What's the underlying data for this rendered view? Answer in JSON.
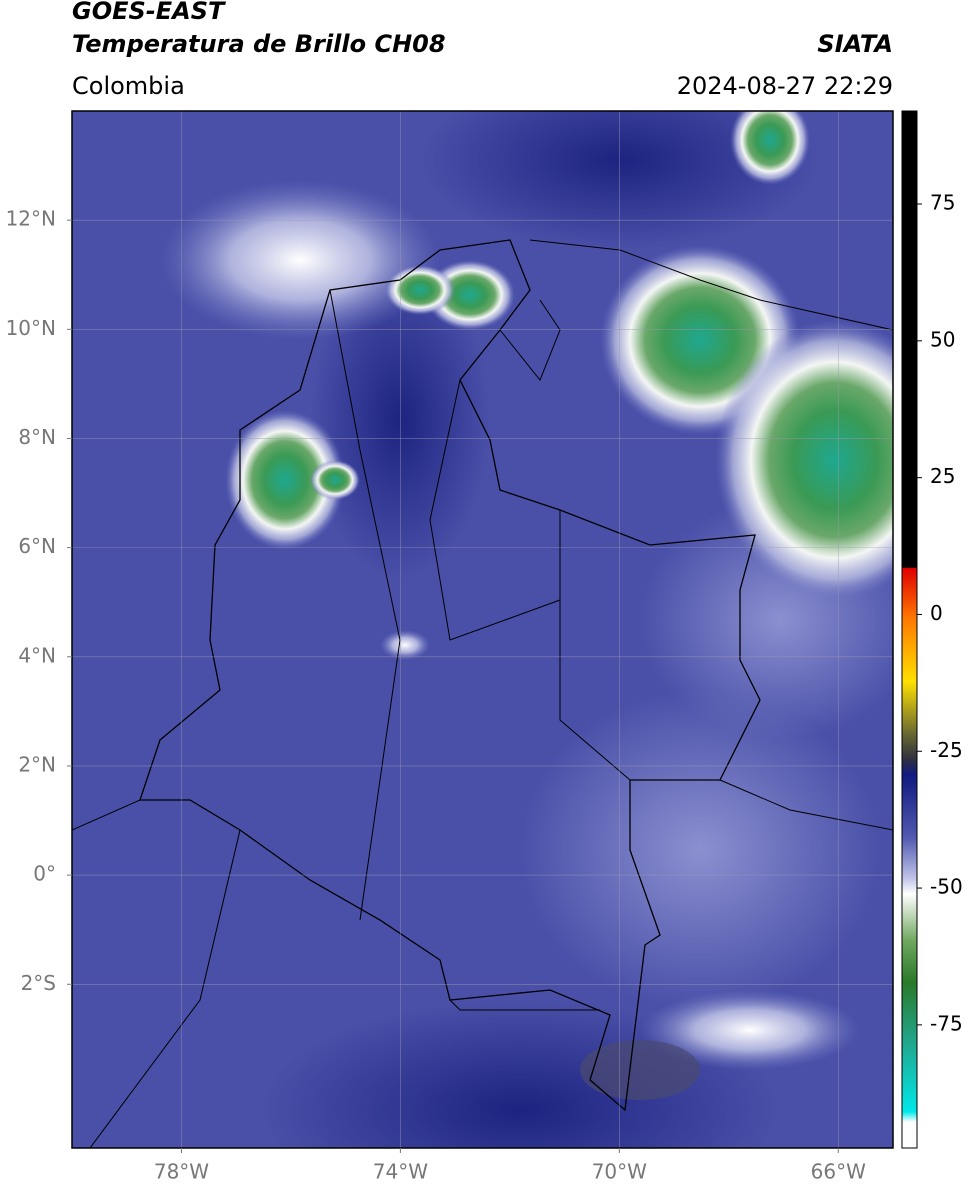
{
  "header": {
    "title_line1": "GOES-EAST",
    "title_line2": "Temperatura de Brillo CH08",
    "region": "Colombia",
    "source": "SIATA",
    "datetime": "2024-08-27 22:29"
  },
  "map": {
    "lonlim": [
      -80,
      -65
    ],
    "latlim": [
      -5,
      14
    ],
    "lon_ticks": [
      {
        "value": -78,
        "label": "78°W"
      },
      {
        "value": -74,
        "label": "74°W"
      },
      {
        "value": -70,
        "label": "70°W"
      },
      {
        "value": -66,
        "label": "66°W"
      }
    ],
    "lat_ticks": [
      {
        "value": 12,
        "label": "12°N"
      },
      {
        "value": 10,
        "label": "10°N"
      },
      {
        "value": 8,
        "label": "8°N"
      },
      {
        "value": 6,
        "label": "6°N"
      },
      {
        "value": 4,
        "label": "4°N"
      },
      {
        "value": 2,
        "label": "2°N"
      },
      {
        "value": 0,
        "label": "0°"
      },
      {
        "value": -2,
        "label": "2°S"
      }
    ]
  },
  "colorbar": {
    "lim": [
      -97.5,
      92
    ],
    "ticks": [
      75,
      50,
      25,
      0,
      -25,
      -50,
      -75
    ]
  }
}
